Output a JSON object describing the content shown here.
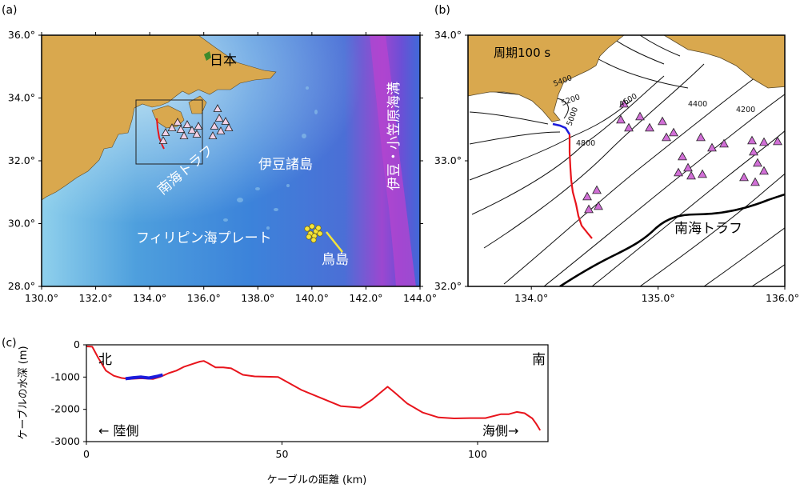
{
  "panel_a": {
    "label": "(a)",
    "x_ticks": [
      "130.0°",
      "132.0°",
      "134.0°",
      "136.0°",
      "138.0°",
      "140.0°",
      "142.0°",
      "144.0°"
    ],
    "y_ticks": [
      "36.0°",
      "34.0°",
      "32.0°",
      "30.0°",
      "28.0°"
    ],
    "place_labels": {
      "japan": "日本",
      "nankai_trough": "南海トラフ",
      "izu_islands": "伊豆諸島",
      "izu_ogasawara_trench": "伊豆・小笠原海溝",
      "philippine_sea_plate": "フィリピン海プレート",
      "torishima": "鳥島"
    }
  },
  "panel_b": {
    "label": "(b)",
    "title": "周期100 s",
    "x_ticks": [
      "134.0°",
      "135.0°",
      "136.0°"
    ],
    "y_ticks": [
      "34.0°",
      "33.0°",
      "32.0°"
    ],
    "contour_labels": [
      "5400",
      "5200",
      "5000",
      "4800",
      "4600",
      "4400",
      "4200"
    ],
    "trough_label": "南海トラフ"
  },
  "panel_c": {
    "label": "(c)",
    "ylabel": "ケーブルの水深 (m)",
    "xlabel": "ケーブルの距離 (km)",
    "north_label": "北",
    "south_label": "南",
    "land_side_label": "← 陸側",
    "sea_side_label": "海側→",
    "x_ticks": [
      "0",
      "50",
      "100"
    ],
    "y_ticks": [
      "0",
      "-1000",
      "-2000",
      "-3000"
    ]
  },
  "chart_data": {
    "type": "line",
    "xlabel": "ケーブルの距離 (km)",
    "ylabel": "ケーブルの水深 (m)",
    "xlim": [
      0,
      118
    ],
    "ylim": [
      -3000,
      0
    ],
    "series": [
      {
        "color": "#e8141c",
        "x": [
          0,
          1.5,
          3,
          5,
          7,
          9,
          11,
          14,
          17,
          19,
          21,
          23,
          25,
          27,
          29,
          30,
          31,
          33,
          35,
          37,
          40,
          43,
          46,
          49,
          52,
          55,
          60,
          65,
          70,
          73,
          75,
          77,
          79,
          82,
          86,
          90,
          94,
          98,
          102,
          106,
          108,
          110,
          112,
          114,
          115,
          116
        ],
        "y": [
          -50,
          -60,
          -400,
          -800,
          -960,
          -1030,
          -1060,
          -1040,
          -1060,
          -990,
          -880,
          -800,
          -680,
          -600,
          -520,
          -500,
          -560,
          -700,
          -700,
          -730,
          -930,
          -980,
          -990,
          -1000,
          -1200,
          -1400,
          -1650,
          -1900,
          -1950,
          -1700,
          -1500,
          -1300,
          -1500,
          -1820,
          -2100,
          -2250,
          -2280,
          -2270,
          -2270,
          -2150,
          -2150,
          -2080,
          -2120,
          -2280,
          -2450,
          -2650
        ]
      },
      {
        "color": "#1b1bdc",
        "x": [
          10,
          12,
          14,
          16,
          18,
          19.5
        ],
        "y": [
          -1050,
          -1020,
          -1000,
          -1030,
          -980,
          -930
        ]
      }
    ]
  },
  "colors": {
    "land": "#d9a84e",
    "cable": "#e8141c",
    "cable_highlight": "#1b1bdc",
    "station_pink": "#e58ad8",
    "station_violet": "#d16fd6",
    "torishima_dots": "#f4e43a"
  }
}
